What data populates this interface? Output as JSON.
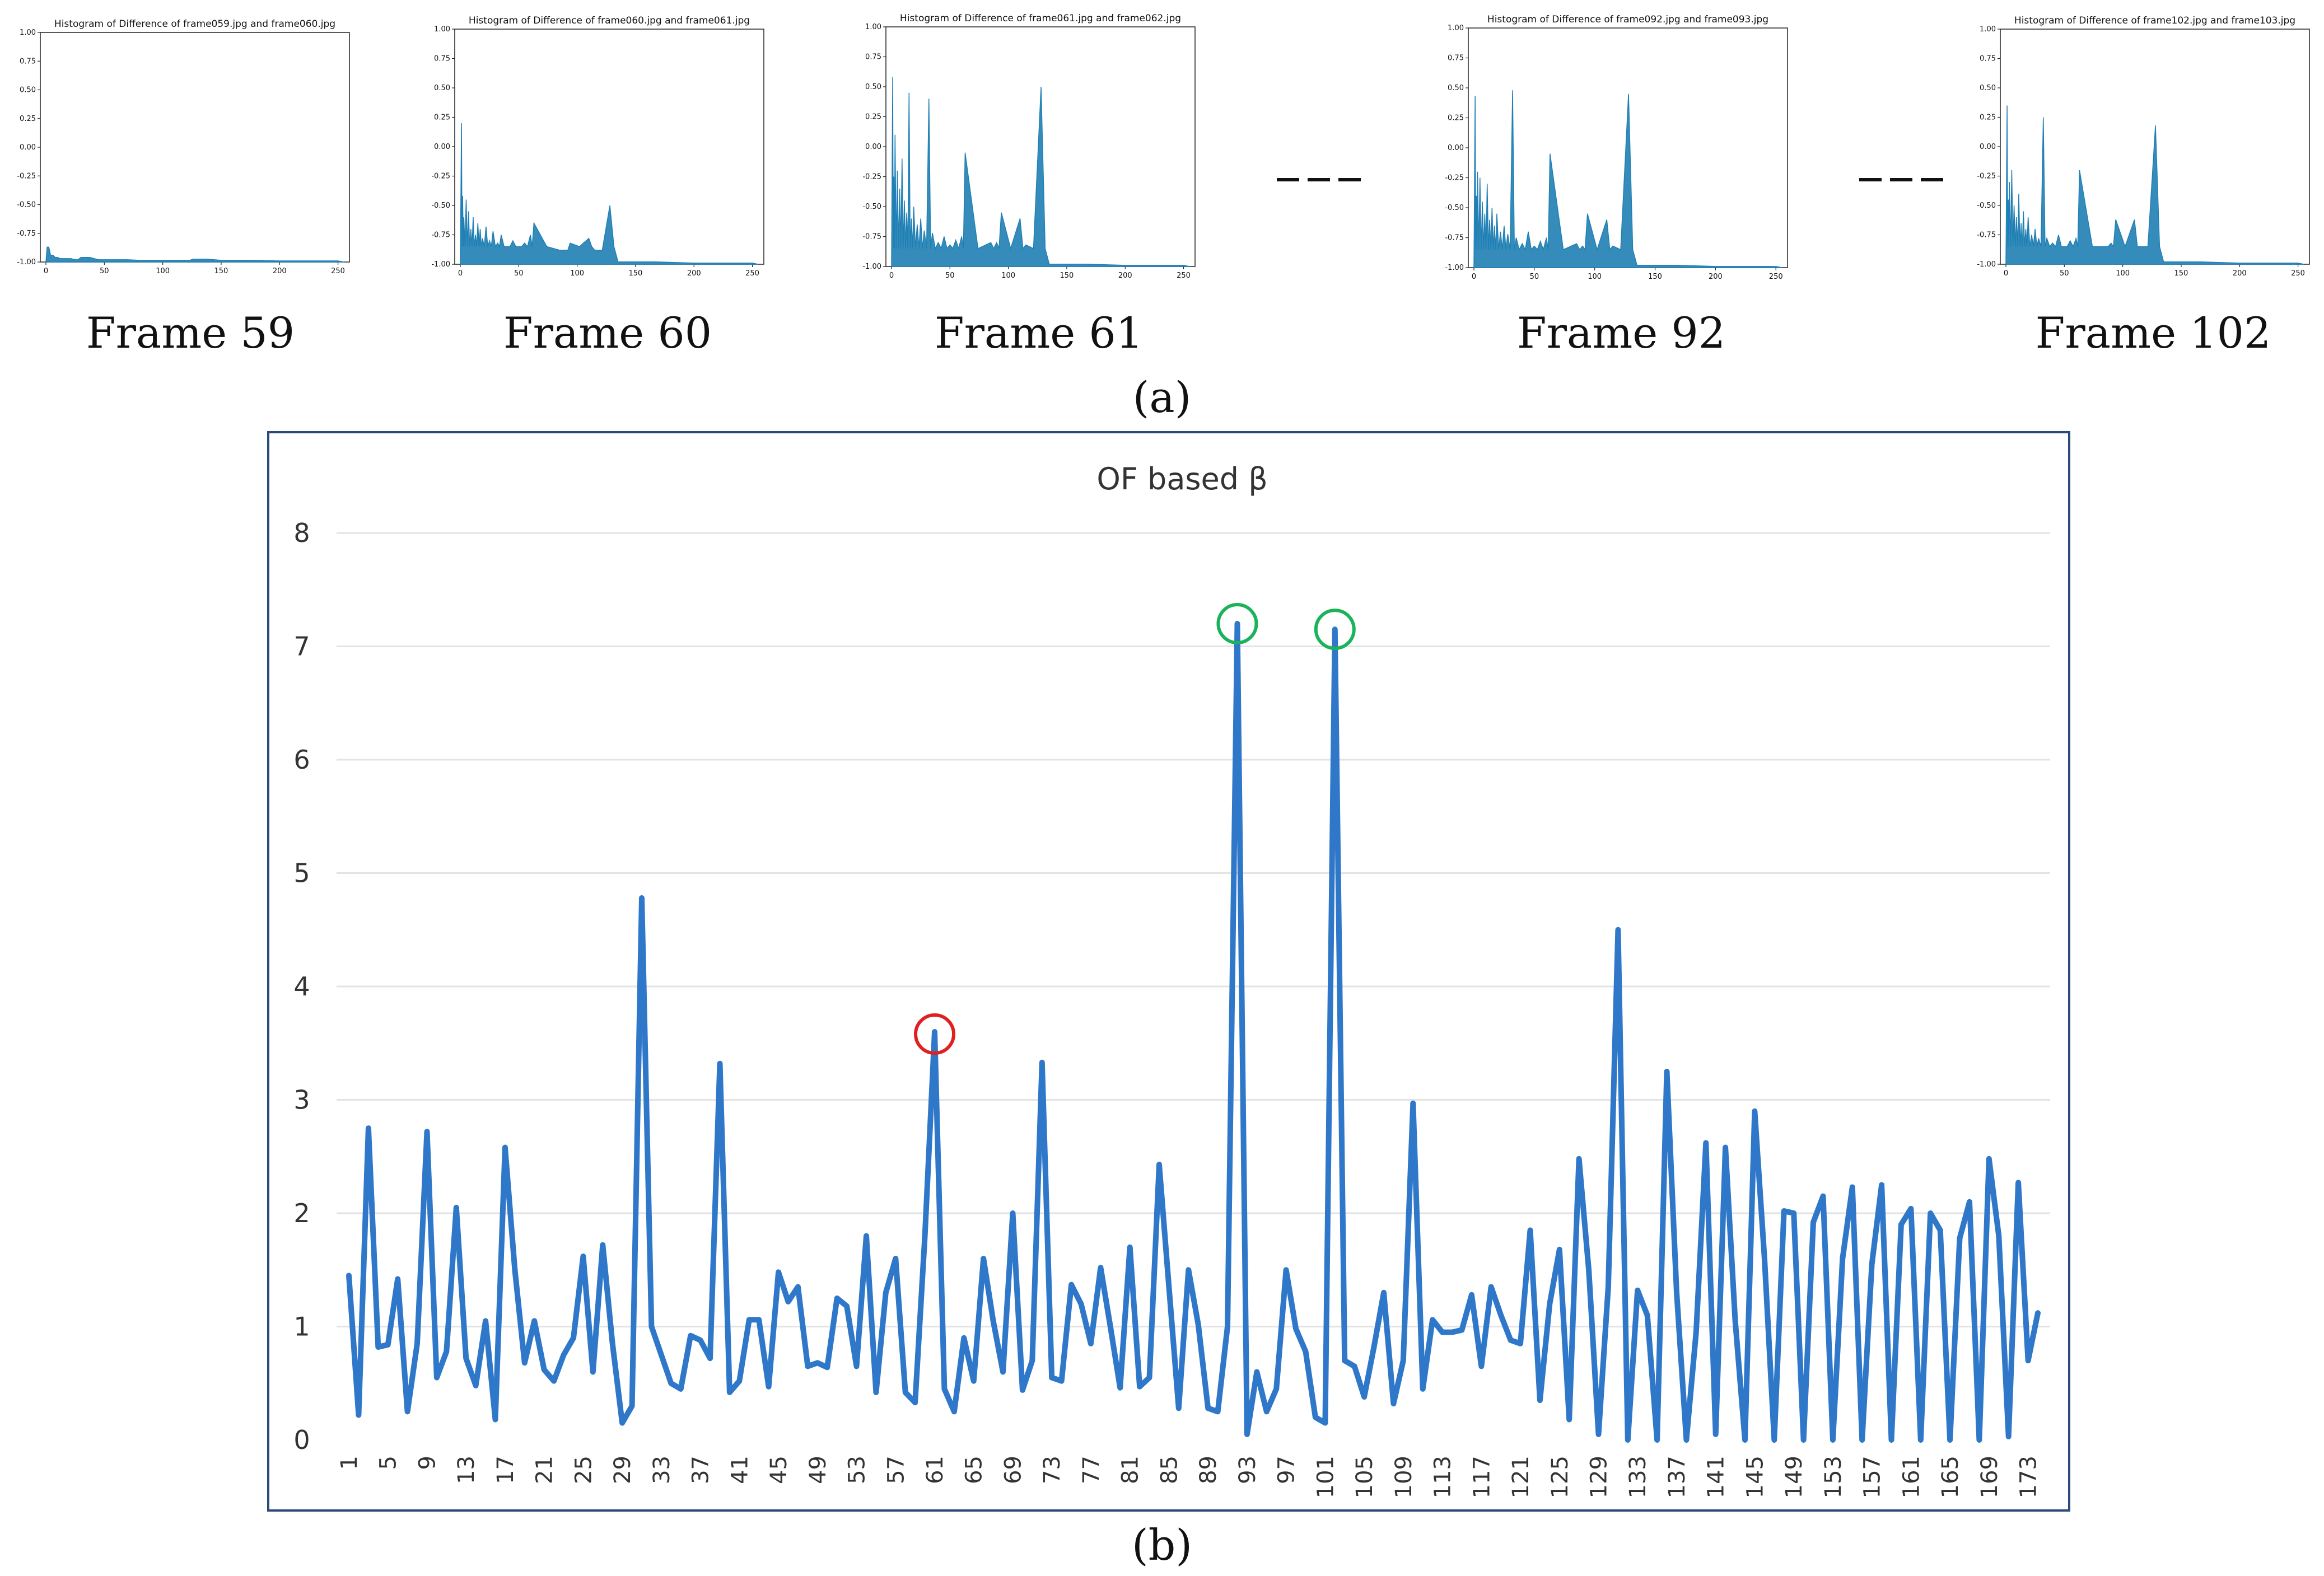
{
  "panel_a_label": "(a)",
  "panel_b_label": "(b)",
  "dashes": "— — —",
  "chart_data": [
    {
      "type": "line",
      "title": "Histogram of Difference of frame059.jpg and frame060.jpg",
      "caption": "Frame 59",
      "xlim": [
        0,
        255
      ],
      "ylim": [
        -1,
        1
      ],
      "xticks": [
        0,
        50,
        100,
        150,
        200,
        250
      ],
      "yticks": [
        "1.00",
        "0.75",
        "0.50",
        "0.25",
        "0.00",
        "-0.25",
        "-0.50",
        "-0.75",
        "-1.00"
      ],
      "peaks": [
        [
          1,
          -0.87
        ],
        [
          4,
          -0.94
        ],
        [
          8,
          -0.96
        ],
        [
          12,
          -0.97
        ],
        [
          18,
          -0.97
        ],
        [
          25,
          -0.98
        ],
        [
          30,
          -0.96
        ],
        [
          45,
          -0.98
        ],
        [
          60,
          -0.98
        ],
        [
          80,
          -0.985
        ],
        [
          100,
          -0.985
        ],
        [
          120,
          -0.985
        ],
        [
          126,
          -0.975
        ],
        [
          150,
          -0.985
        ],
        [
          200,
          -0.99
        ],
        [
          250,
          -0.99
        ]
      ]
    },
    {
      "type": "line",
      "title": "Histogram of Difference of frame060.jpg and frame061.jpg",
      "caption": "Frame 60",
      "xlim": [
        0,
        255
      ],
      "ylim": [
        -1,
        1
      ],
      "xticks": [
        0,
        50,
        100,
        150,
        200,
        250
      ],
      "yticks": [
        "1.00",
        "0.75",
        "0.50",
        "0.25",
        "0.00",
        "-0.25",
        "-0.50",
        "-0.75",
        "-1.00"
      ],
      "peaks": [
        [
          1,
          0.2
        ],
        [
          2,
          -0.42
        ],
        [
          3,
          -0.6
        ],
        [
          5,
          -0.45
        ],
        [
          7,
          -0.55
        ],
        [
          9,
          -0.7
        ],
        [
          11,
          -0.6
        ],
        [
          13,
          -0.75
        ],
        [
          15,
          -0.65
        ],
        [
          17,
          -0.7
        ],
        [
          19,
          -0.78
        ],
        [
          22,
          -0.68
        ],
        [
          25,
          -0.8
        ],
        [
          28,
          -0.72
        ],
        [
          32,
          -0.82
        ],
        [
          35,
          -0.75
        ],
        [
          40,
          -0.85
        ],
        [
          45,
          -0.8
        ],
        [
          50,
          -0.85
        ],
        [
          55,
          -0.82
        ],
        [
          60,
          -0.75
        ],
        [
          63,
          -0.65
        ],
        [
          85,
          -0.88
        ],
        [
          90,
          -0.88
        ],
        [
          94,
          -0.82
        ],
        [
          110,
          -0.78
        ],
        [
          115,
          -0.88
        ],
        [
          128,
          -0.5
        ],
        [
          135,
          -0.98
        ],
        [
          200,
          -0.99
        ],
        [
          250,
          -0.99
        ]
      ]
    },
    {
      "type": "line",
      "title": "Histogram of Difference of frame061.jpg and frame062.jpg",
      "caption": "Frame 61",
      "xlim": [
        0,
        255
      ],
      "ylim": [
        -1,
        1
      ],
      "xticks": [
        0,
        50,
        100,
        150,
        200,
        250
      ],
      "yticks": [
        "1.00",
        "0.75",
        "0.50",
        "0.25",
        "0.00",
        "-0.25",
        "-0.50",
        "-0.75",
        "-1.00"
      ],
      "peaks": [
        [
          1,
          0.58
        ],
        [
          2,
          -0.25
        ],
        [
          3,
          0.1
        ],
        [
          5,
          -0.2
        ],
        [
          7,
          -0.35
        ],
        [
          9,
          -0.1
        ],
        [
          11,
          -0.45
        ],
        [
          13,
          -0.55
        ],
        [
          15,
          0.45
        ],
        [
          17,
          -0.6
        ],
        [
          19,
          -0.5
        ],
        [
          22,
          -0.65
        ],
        [
          25,
          -0.6
        ],
        [
          28,
          -0.7
        ],
        [
          32,
          0.4
        ],
        [
          35,
          -0.72
        ],
        [
          40,
          -0.8
        ],
        [
          45,
          -0.75
        ],
        [
          50,
          -0.82
        ],
        [
          55,
          -0.78
        ],
        [
          60,
          -0.75
        ],
        [
          63,
          -0.05
        ],
        [
          85,
          -0.8
        ],
        [
          90,
          -0.8
        ],
        [
          94,
          -0.55
        ],
        [
          110,
          -0.6
        ],
        [
          115,
          -0.82
        ],
        [
          128,
          0.5
        ],
        [
          135,
          -0.98
        ],
        [
          200,
          -0.99
        ],
        [
          250,
          -0.99
        ]
      ]
    },
    {
      "type": "line",
      "title": "Histogram of Difference of frame092.jpg and frame093.jpg",
      "caption": "Frame 92",
      "xlim": [
        0,
        255
      ],
      "ylim": [
        -1,
        1
      ],
      "xticks": [
        0,
        50,
        100,
        150,
        200,
        250
      ],
      "yticks": [
        "1.00",
        "0.75",
        "0.50",
        "0.25",
        "0.00",
        "-0.25",
        "-0.50",
        "-0.75",
        "-1.00"
      ],
      "peaks": [
        [
          1,
          0.43
        ],
        [
          2,
          -0.4
        ],
        [
          3,
          -0.2
        ],
        [
          5,
          -0.25
        ],
        [
          7,
          -0.45
        ],
        [
          9,
          -0.55
        ],
        [
          11,
          -0.3
        ],
        [
          13,
          -0.6
        ],
        [
          15,
          -0.5
        ],
        [
          17,
          -0.65
        ],
        [
          19,
          -0.55
        ],
        [
          22,
          -0.7
        ],
        [
          25,
          -0.65
        ],
        [
          28,
          -0.72
        ],
        [
          32,
          0.48
        ],
        [
          35,
          -0.75
        ],
        [
          40,
          -0.8
        ],
        [
          45,
          -0.7
        ],
        [
          50,
          -0.82
        ],
        [
          55,
          -0.78
        ],
        [
          60,
          -0.75
        ],
        [
          63,
          -0.05
        ],
        [
          85,
          -0.8
        ],
        [
          90,
          -0.82
        ],
        [
          94,
          -0.55
        ],
        [
          110,
          -0.6
        ],
        [
          115,
          -0.82
        ],
        [
          128,
          0.45
        ],
        [
          135,
          -0.98
        ],
        [
          200,
          -0.99
        ],
        [
          250,
          -0.99
        ]
      ]
    },
    {
      "type": "line",
      "title": "Histogram of Difference of frame102.jpg and frame103.jpg",
      "caption": "Frame 102",
      "xlim": [
        0,
        255
      ],
      "ylim": [
        -1,
        1
      ],
      "xticks": [
        0,
        50,
        100,
        150,
        200,
        250
      ],
      "yticks": [
        "1.00",
        "0.75",
        "0.50",
        "0.25",
        "0.00",
        "-0.25",
        "-0.50",
        "-0.75",
        "-1.00"
      ],
      "peaks": [
        [
          1,
          0.35
        ],
        [
          2,
          -0.45
        ],
        [
          3,
          -0.3
        ],
        [
          5,
          -0.2
        ],
        [
          7,
          -0.5
        ],
        [
          9,
          -0.6
        ],
        [
          11,
          -0.4
        ],
        [
          13,
          -0.65
        ],
        [
          15,
          -0.55
        ],
        [
          17,
          -0.7
        ],
        [
          19,
          -0.6
        ],
        [
          22,
          -0.75
        ],
        [
          25,
          -0.7
        ],
        [
          28,
          -0.78
        ],
        [
          32,
          0.25
        ],
        [
          35,
          -0.78
        ],
        [
          40,
          -0.82
        ],
        [
          45,
          -0.75
        ],
        [
          50,
          -0.85
        ],
        [
          55,
          -0.8
        ],
        [
          60,
          -0.78
        ],
        [
          63,
          -0.2
        ],
        [
          85,
          -0.85
        ],
        [
          90,
          -0.82
        ],
        [
          94,
          -0.62
        ],
        [
          110,
          -0.62
        ],
        [
          115,
          -0.85
        ],
        [
          128,
          0.18
        ],
        [
          135,
          -0.98
        ],
        [
          200,
          -0.99
        ],
        [
          250,
          -0.99
        ]
      ]
    },
    {
      "type": "line",
      "title": "OF based β",
      "xlabel": "",
      "ylabel": "",
      "ylim": [
        0,
        8
      ],
      "yticks": [
        0,
        1,
        2,
        3,
        4,
        5,
        6,
        7,
        8
      ],
      "grid": true,
      "line_color": "#2f77c9",
      "x_start": 1,
      "x_tick_step": 4,
      "values": [
        1.45,
        0.22,
        2.75,
        0.82,
        0.84,
        1.42,
        0.25,
        0.85,
        2.72,
        0.55,
        0.78,
        2.05,
        0.72,
        0.48,
        1.05,
        0.18,
        2.58,
        1.5,
        0.68,
        1.05,
        0.62,
        0.52,
        0.75,
        0.9,
        1.62,
        0.6,
        1.72,
        0.85,
        0.15,
        0.3,
        4.78,
        1.0,
        0.75,
        0.5,
        0.45,
        0.92,
        0.88,
        0.72,
        3.32,
        0.42,
        0.52,
        1.06,
        1.06,
        0.47,
        1.48,
        1.22,
        1.35,
        0.65,
        0.68,
        0.64,
        1.25,
        1.18,
        0.65,
        1.8,
        0.42,
        1.3,
        1.6,
        0.42,
        0.33,
        1.8,
        3.6,
        0.45,
        0.25,
        0.9,
        0.52,
        1.6,
        1.05,
        0.6,
        2.0,
        0.44,
        0.7,
        3.33,
        0.55,
        0.52,
        1.37,
        1.2,
        0.85,
        1.52,
        1.0,
        0.46,
        1.7,
        0.47,
        0.55,
        2.43,
        1.35,
        0.28,
        1.5,
        1.02,
        0.28,
        0.25,
        1.0,
        7.2,
        0.05,
        0.6,
        0.25,
        0.45,
        1.5,
        0.98,
        0.78,
        0.2,
        0.15,
        7.15,
        0.7,
        0.65,
        0.38,
        0.82,
        1.3,
        0.32,
        0.7,
        2.97,
        0.45,
        1.06,
        0.95,
        0.95,
        0.97,
        1.28,
        0.65,
        1.35,
        1.1,
        0.88,
        0.85,
        1.85,
        0.35,
        1.2,
        1.68,
        0.18,
        2.48,
        1.5,
        0.05,
        1.35,
        4.5,
        0.0,
        1.32,
        1.1,
        0.0,
        3.25,
        1.3,
        0.0,
        0.95,
        2.62,
        0.05,
        2.58,
        1.05,
        0.0,
        2.9,
        1.6,
        0.0,
        2.02,
        2.0,
        0.0,
        1.92,
        2.15,
        0.0,
        1.6,
        2.23,
        0.0,
        1.55,
        2.25,
        0.0,
        1.9,
        2.04,
        0.0,
        2.0,
        1.85,
        0.0,
        1.78,
        2.1,
        0.0,
        2.48,
        1.8,
        0.03,
        2.27,
        0.7,
        1.12
      ],
      "highlights": [
        {
          "x": 61,
          "y": 3.58,
          "color": "#e02020"
        },
        {
          "x": 92,
          "y": 7.2,
          "color": "#1bb35a"
        },
        {
          "x": 102,
          "y": 7.15,
          "color": "#1bb35a"
        }
      ]
    }
  ]
}
